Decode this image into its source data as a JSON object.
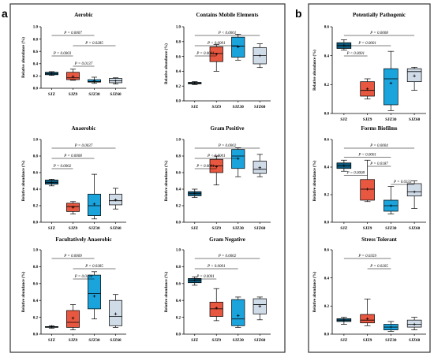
{
  "panel_labels": [
    "a",
    "b"
  ],
  "chart_data": [
    {
      "type": "boxplot",
      "panel": "a",
      "title": "Aerobic",
      "ylabel": "Relative abundance (%)",
      "ylim": [
        0,
        1.0
      ],
      "yticks": [
        "0.0",
        "0.2",
        "0.4",
        "0.6",
        "0.8",
        "1.0"
      ],
      "categories": [
        "SJZ",
        "SJZ9",
        "SJZ30",
        "SJZ60"
      ],
      "boxes": [
        {
          "min": 0.21,
          "q1": 0.22,
          "median": 0.24,
          "q3": 0.26,
          "max": 0.27,
          "mean": 0.24
        },
        {
          "min": 0.13,
          "q1": 0.14,
          "median": 0.17,
          "q3": 0.26,
          "max": 0.31,
          "mean": 0.19
        },
        {
          "min": 0.08,
          "q1": 0.1,
          "median": 0.11,
          "q3": 0.14,
          "max": 0.18,
          "mean": 0.12
        },
        {
          "min": 0.07,
          "q1": 0.09,
          "median": 0.12,
          "q3": 0.16,
          "max": 0.17,
          "mean": 0.12
        }
      ],
      "comparisons": [
        {
          "from": 0,
          "to": 2,
          "label": "P = 0.0007"
        },
        {
          "from": 1,
          "to": 3,
          "label": "P = 0.0285"
        },
        {
          "from": 0,
          "to": 1,
          "label": "P = 0.0003"
        },
        {
          "from": 1,
          "to": 2,
          "label": "P = 0.0137"
        }
      ]
    },
    {
      "type": "boxplot",
      "panel": "a",
      "title": "Contains Mobile Elements",
      "ylabel": "Relative abundance (%)",
      "ylim": [
        0,
        1.0
      ],
      "yticks": [
        "0.0",
        "0.2",
        "0.4",
        "0.6",
        "0.8",
        "1.0"
      ],
      "categories": [
        "SJZ",
        "SJZ9",
        "SJZ30",
        "SJZ60"
      ],
      "boxes": [
        {
          "min": 0.22,
          "q1": 0.23,
          "median": 0.24,
          "q3": 0.25,
          "max": 0.26,
          "mean": 0.24
        },
        {
          "min": 0.4,
          "q1": 0.53,
          "median": 0.64,
          "q3": 0.73,
          "max": 0.76,
          "mean": 0.63
        },
        {
          "min": 0.55,
          "q1": 0.59,
          "median": 0.74,
          "q3": 0.86,
          "max": 0.9,
          "mean": 0.73
        },
        {
          "min": 0.45,
          "q1": 0.5,
          "median": 0.61,
          "q3": 0.72,
          "max": 0.77,
          "mean": 0.61
        }
      ],
      "comparisons": [
        {
          "from": 0,
          "to": 3,
          "label": "P < 0.0001"
        },
        {
          "from": 0,
          "to": 2,
          "label": "P < 0.0001"
        },
        {
          "from": 0,
          "to": 1,
          "label": "P = 0.0001"
        }
      ]
    },
    {
      "type": "boxplot",
      "panel": "a",
      "title": "Anaerobic",
      "ylabel": "Relative abundance (%)",
      "ylim": [
        0,
        1.0
      ],
      "yticks": [
        "0.0",
        "0.2",
        "0.4",
        "0.6",
        "0.8",
        "1.0"
      ],
      "categories": [
        "SJZ",
        "SJZ9",
        "SJZ30",
        "SJZ60"
      ],
      "boxes": [
        {
          "min": 0.44,
          "q1": 0.46,
          "median": 0.48,
          "q3": 0.51,
          "max": 0.52,
          "mean": 0.48
        },
        {
          "min": 0.1,
          "q1": 0.13,
          "median": 0.19,
          "q3": 0.23,
          "max": 0.25,
          "mean": 0.18
        },
        {
          "min": 0.04,
          "q1": 0.08,
          "median": 0.2,
          "q3": 0.34,
          "max": 0.58,
          "mean": 0.22
        },
        {
          "min": 0.16,
          "q1": 0.21,
          "median": 0.26,
          "q3": 0.34,
          "max": 0.41,
          "mean": 0.27
        }
      ],
      "comparisons": [
        {
          "from": 0,
          "to": 3,
          "label": "P = 0.0037"
        },
        {
          "from": 0,
          "to": 2,
          "label": "P = 0.0008"
        },
        {
          "from": 0,
          "to": 1,
          "label": "P = 0.0002"
        }
      ]
    },
    {
      "type": "boxplot",
      "panel": "a",
      "title": "Gram Positive",
      "ylabel": "Relative abundance (%)",
      "ylim": [
        0,
        1.0
      ],
      "yticks": [
        "0.0",
        "0.2",
        "0.4",
        "0.6",
        "0.8",
        "1.0"
      ],
      "categories": [
        "SJZ",
        "SJZ9",
        "SJZ30",
        "SJZ60"
      ],
      "boxes": [
        {
          "min": 0.3,
          "q1": 0.32,
          "median": 0.35,
          "q3": 0.37,
          "max": 0.4,
          "mean": 0.35
        },
        {
          "min": 0.45,
          "q1": 0.6,
          "median": 0.68,
          "q3": 0.76,
          "max": 0.8,
          "mean": 0.67
        },
        {
          "min": 0.55,
          "q1": 0.65,
          "median": 0.8,
          "q3": 0.88,
          "max": 0.9,
          "mean": 0.77
        },
        {
          "min": 0.55,
          "q1": 0.59,
          "median": 0.64,
          "q3": 0.74,
          "max": 0.82,
          "mean": 0.66
        }
      ],
      "comparisons": [
        {
          "from": 0,
          "to": 3,
          "label": "P = 0.0002"
        },
        {
          "from": 0,
          "to": 2,
          "label": "P < 0.0001"
        },
        {
          "from": 0,
          "to": 1,
          "label": "P = 0.0001"
        }
      ]
    },
    {
      "type": "boxplot",
      "panel": "a",
      "title": "Facultatively Anaerobic",
      "ylabel": "Relative abundance (%)",
      "ylim": [
        0,
        1.0
      ],
      "yticks": [
        "0.0",
        "0.2",
        "0.4",
        "0.6",
        "0.8",
        "1.0"
      ],
      "categories": [
        "SJZ",
        "SJZ9",
        "SJZ30",
        "SJZ60"
      ],
      "boxes": [
        {
          "min": 0.07,
          "q1": 0.08,
          "median": 0.09,
          "q3": 0.09,
          "max": 0.1,
          "mean": 0.09
        },
        {
          "min": 0.05,
          "q1": 0.08,
          "median": 0.14,
          "q3": 0.28,
          "max": 0.35,
          "mean": 0.19
        },
        {
          "min": 0.18,
          "q1": 0.3,
          "median": 0.48,
          "q3": 0.7,
          "max": 0.74,
          "mean": 0.45
        },
        {
          "min": 0.08,
          "q1": 0.1,
          "median": 0.21,
          "q3": 0.4,
          "max": 0.47,
          "mean": 0.24
        }
      ],
      "comparisons": [
        {
          "from": 0,
          "to": 2,
          "label": "P = 0.0009"
        },
        {
          "from": 1,
          "to": 3,
          "label": "P = 0.0385"
        },
        {
          "from": 1,
          "to": 2,
          "label": "P = 0.0130"
        }
      ]
    },
    {
      "type": "boxplot",
      "panel": "a",
      "title": "Gram Negative",
      "ylabel": "Relative abundance (%)",
      "ylim": [
        0,
        1.0
      ],
      "yticks": [
        "0.0",
        "0.2",
        "0.4",
        "0.6",
        "0.8",
        "1.0"
      ],
      "categories": [
        "SJZ",
        "SJZ9",
        "SJZ30",
        "SJZ60"
      ],
      "boxes": [
        {
          "min": 0.58,
          "q1": 0.61,
          "median": 0.64,
          "q3": 0.66,
          "max": 0.68,
          "mean": 0.64
        },
        {
          "min": 0.16,
          "q1": 0.21,
          "median": 0.3,
          "q3": 0.38,
          "max": 0.54,
          "mean": 0.31
        },
        {
          "min": 0.08,
          "q1": 0.1,
          "median": 0.18,
          "q3": 0.41,
          "max": 0.44,
          "mean": 0.22
        },
        {
          "min": 0.17,
          "q1": 0.24,
          "median": 0.35,
          "q3": 0.42,
          "max": 0.44,
          "mean": 0.33
        }
      ],
      "comparisons": [
        {
          "from": 0,
          "to": 3,
          "label": "P = 0.0002"
        },
        {
          "from": 0,
          "to": 2,
          "label": "P < 0.0001"
        },
        {
          "from": 0,
          "to": 1,
          "label": "P = 0.0001"
        }
      ]
    },
    {
      "type": "boxplot",
      "panel": "b",
      "title": "Potentially Pathogenic",
      "ylabel": "Relative abundance (%)",
      "ylim": [
        0,
        0.6
      ],
      "yticks": [
        "0.0",
        "0.2",
        "0.4",
        "0.6"
      ],
      "categories": [
        "SJZ",
        "SJZ9",
        "SJZ30",
        "SJZ60"
      ],
      "boxes": [
        {
          "min": 0.44,
          "q1": 0.45,
          "median": 0.47,
          "q3": 0.49,
          "max": 0.51,
          "mean": 0.47
        },
        {
          "min": 0.1,
          "q1": 0.12,
          "median": 0.16,
          "q3": 0.22,
          "max": 0.24,
          "mean": 0.17
        },
        {
          "min": 0.02,
          "q1": 0.06,
          "median": 0.24,
          "q3": 0.31,
          "max": 0.43,
          "mean": 0.21
        },
        {
          "min": 0.16,
          "q1": 0.22,
          "median": 0.29,
          "q3": 0.31,
          "max": 0.32,
          "mean": 0.26
        }
      ],
      "comparisons": [
        {
          "from": 0,
          "to": 3,
          "label": "P = 0.0008"
        },
        {
          "from": 0,
          "to": 2,
          "label": "P = 0.0001"
        },
        {
          "from": 0,
          "to": 1,
          "label": "P < 0.0001"
        }
      ]
    },
    {
      "type": "boxplot",
      "panel": "b",
      "title": "Forms Biofilms",
      "ylabel": "Relative abundance (%)",
      "ylim": [
        0,
        0.6
      ],
      "yticks": [
        "0.0",
        "0.2",
        "0.4",
        "0.6"
      ],
      "categories": [
        "SJZ",
        "SJZ9",
        "SJZ30",
        "SJZ60"
      ],
      "boxes": [
        {
          "min": 0.37,
          "q1": 0.39,
          "median": 0.41,
          "q3": 0.43,
          "max": 0.45,
          "mean": 0.41
        },
        {
          "min": 0.15,
          "q1": 0.16,
          "median": 0.24,
          "q3": 0.31,
          "max": 0.45,
          "mean": 0.24
        },
        {
          "min": 0.06,
          "q1": 0.08,
          "median": 0.12,
          "q3": 0.16,
          "max": 0.26,
          "mean": 0.12
        },
        {
          "min": 0.1,
          "q1": 0.19,
          "median": 0.22,
          "q3": 0.28,
          "max": 0.3,
          "mean": 0.22
        }
      ],
      "comparisons": [
        {
          "from": 0,
          "to": 3,
          "label": "P = 0.0004"
        },
        {
          "from": 0,
          "to": 2,
          "label": "P < 0.0001"
        },
        {
          "from": 1,
          "to": 2,
          "label": "P = 0.0187"
        },
        {
          "from": 0,
          "to": 1,
          "label": "P = 0.0008"
        },
        {
          "from": 2,
          "to": 3,
          "label": "P = 0.0333"
        }
      ]
    },
    {
      "type": "boxplot",
      "panel": "b",
      "title": "Stress Tolerant",
      "ylabel": "Relative abundance (%)",
      "ylim": [
        0,
        0.6
      ],
      "yticks": [
        "0.0",
        "0.2",
        "0.4",
        "0.6"
      ],
      "categories": [
        "SJZ",
        "SJZ9",
        "SJZ30",
        "SJZ60"
      ],
      "boxes": [
        {
          "min": 0.07,
          "q1": 0.09,
          "median": 0.1,
          "q3": 0.11,
          "max": 0.12,
          "mean": 0.1
        },
        {
          "min": 0.06,
          "q1": 0.08,
          "median": 0.1,
          "q3": 0.14,
          "max": 0.25,
          "mean": 0.11
        },
        {
          "min": 0.02,
          "q1": 0.03,
          "median": 0.05,
          "q3": 0.07,
          "max": 0.09,
          "mean": 0.05
        },
        {
          "min": 0.03,
          "q1": 0.05,
          "median": 0.07,
          "q3": 0.1,
          "max": 0.12,
          "mean": 0.07
        }
      ],
      "comparisons": [
        {
          "from": 0,
          "to": 2,
          "label": "P = 0.0359"
        },
        {
          "from": 1,
          "to": 2,
          "label": "P = 0.0205"
        }
      ]
    }
  ],
  "colors": {
    "SJZ": "#0b5a7e",
    "SJZ9": "#e8573f",
    "SJZ30": "#1ba3dc",
    "SJZ60": "#d0dbe8"
  }
}
